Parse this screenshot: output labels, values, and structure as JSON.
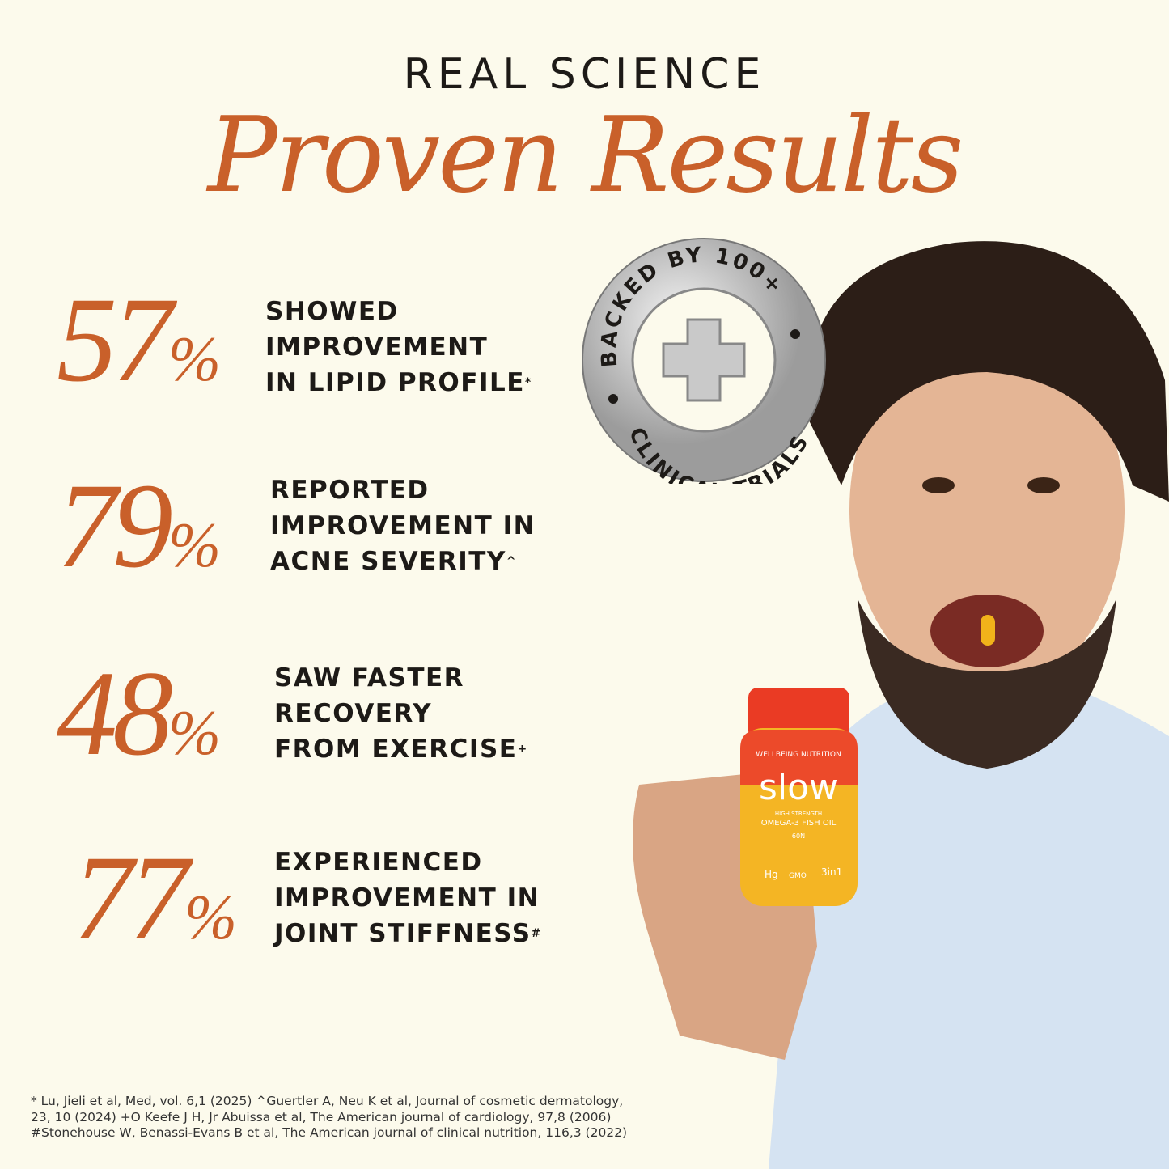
{
  "header": {
    "eyebrow": "REAL SCIENCE",
    "title": "Proven Results"
  },
  "stats": [
    {
      "value": "57",
      "sign": "%",
      "lines": [
        "SHOWED",
        "IMPROVEMENT",
        "IN LIPID PROFILE"
      ],
      "mark": "*"
    },
    {
      "value": "79",
      "sign": "%",
      "lines": [
        "REPORTED",
        "IMPROVEMENT IN",
        "ACNE SEVERITY"
      ],
      "mark": "^"
    },
    {
      "value": "48",
      "sign": "%",
      "lines": [
        "SAW FASTER",
        "RECOVERY",
        "FROM EXERCISE"
      ],
      "mark": "+"
    },
    {
      "value": "77",
      "sign": "%",
      "lines": [
        "EXPERIENCED",
        "IMPROVEMENT IN",
        "JOINT STIFFNESS"
      ],
      "mark": "#"
    }
  ],
  "badge": {
    "top_text": "BACKED BY 100+",
    "bottom_text": "CLINICAL TRIALS",
    "icon": "plus-cross-icon"
  },
  "product": {
    "brand": "WELLBEING NUTRITION",
    "name": "slow",
    "subtitle": "HIGH STRENGTH",
    "product": "OMEGA-3 FISH OIL",
    "count": "60N",
    "tags": [
      "Hg",
      "GMO",
      "3in1"
    ]
  },
  "footnotes": [
    "* Lu, Jieli et al, Med, vol. 6,1 (2025) ^Guertler A, Neu K et al, Journal of cosmetic dermatology,",
    "23, 10 (2024) +O Keefe J H, Jr Abuissa et al, The American journal of cardiology, 97,8 (2006)",
    "#Stonehouse W, Benassi-Evans B et al, The American journal of clinical nutrition, 116,3 (2022)"
  ],
  "colors": {
    "accent": "#c9602a",
    "background": "#fcfaec",
    "text": "#1d1a17"
  }
}
